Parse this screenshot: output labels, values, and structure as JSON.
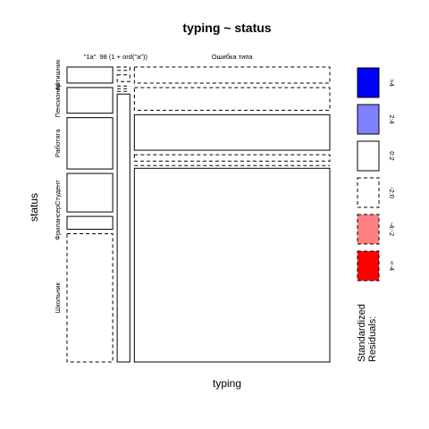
{
  "chart_data": {
    "type": "mosaic",
    "title": "typing ~ status",
    "xlabel": "typing",
    "ylabel": "status",
    "x_categories": [
      "\"1a\"",
      "98 (1 + ord(\"a\"))",
      "Ошибка типа"
    ],
    "y_categories": [
      "Школьник",
      "Фрилансер",
      "Студент",
      "Работяга",
      "Пенсионер",
      "Айтишник"
    ],
    "shares": {
      "\"1a\"": 0.18,
      "98 (1 + ord(\"a\"))": 0.05,
      "Ошибка типа": 0.77
    },
    "cells": [
      {
        "status": "Айтишник",
        "typing": "\"1a\"",
        "share": 0.05,
        "residual_band": "0:2"
      },
      {
        "status": "Айтишник",
        "typing": "98 (1 + ord(\"a\"))",
        "share": 0.01,
        "residual_band": "-2:0"
      },
      {
        "status": "Айтишник",
        "typing": "Ошибка типа",
        "share": 0.05,
        "residual_band": "-2:0"
      },
      {
        "status": "Пенсионер",
        "typing": "\"1a\"",
        "share": 0.08,
        "residual_band": "0:2"
      },
      {
        "status": "Пенсионер",
        "typing": "98 (1 + ord(\"a\"))",
        "share": 0.02,
        "residual_band": "-2:0"
      },
      {
        "status": "Пенсионер",
        "typing": "Ошибка типа",
        "share": 0.07,
        "residual_band": "-2:0"
      },
      {
        "status": "Работяга",
        "typing": "\"1a\"",
        "share": 0.16,
        "residual_band": "0:2"
      },
      {
        "status": "Работяга",
        "typing": "98 (1 + ord(\"a\"))",
        "share": 0.0,
        "residual_band": "-2:0"
      },
      {
        "status": "Работяга",
        "typing": "Ошибка типа",
        "share": 0.11,
        "residual_band": "0:2"
      },
      {
        "status": "Студент",
        "typing": "\"1a\"",
        "share": 0.12,
        "residual_band": "0:2"
      },
      {
        "status": "Студент",
        "typing": "98 (1 + ord(\"a\"))",
        "share": 0.0,
        "residual_band": "-2:0"
      },
      {
        "status": "Студент",
        "typing": "Ошибка типа",
        "share": 0.02,
        "residual_band": "-2:0"
      },
      {
        "status": "Фрилансер",
        "typing": "\"1a\"",
        "share": 0.04,
        "residual_band": "0:2"
      },
      {
        "status": "Фрилансер",
        "typing": "98 (1 + ord(\"a\"))",
        "share": 0.0,
        "residual_band": "-2:0"
      },
      {
        "status": "Фрилансер",
        "typing": "Ошибка типа",
        "share": 0.0,
        "residual_band": "-2:0"
      },
      {
        "status": "Школьник",
        "typing": "\"1a\"",
        "share": 0.4,
        "residual_band": "-2:0"
      },
      {
        "status": "Школьник",
        "typing": "98 (1 + ord(\"a\"))",
        "share": 0.8,
        "residual_band": "0:2"
      },
      {
        "status": "Школьник",
        "typing": "Ошибка типа",
        "share": 0.6,
        "residual_band": "0:2"
      }
    ],
    "legend": {
      "title": "Standardized\nResiduals:",
      "placement": "right",
      "entries": [
        {
          "label": ">4",
          "fill": "#0000ff",
          "dashed": false
        },
        {
          "label": "2:4",
          "fill": "#8080ff",
          "dashed": false
        },
        {
          "label": "0:2",
          "fill": "#ffffff",
          "dashed": false
        },
        {
          "label": "-2:0",
          "fill": "#ffffff",
          "dashed": true
        },
        {
          "label": "-4:-2",
          "fill": "#ff8080",
          "dashed": true
        },
        {
          "label": "<-4",
          "fill": "#ff0000",
          "dashed": true
        }
      ]
    }
  }
}
